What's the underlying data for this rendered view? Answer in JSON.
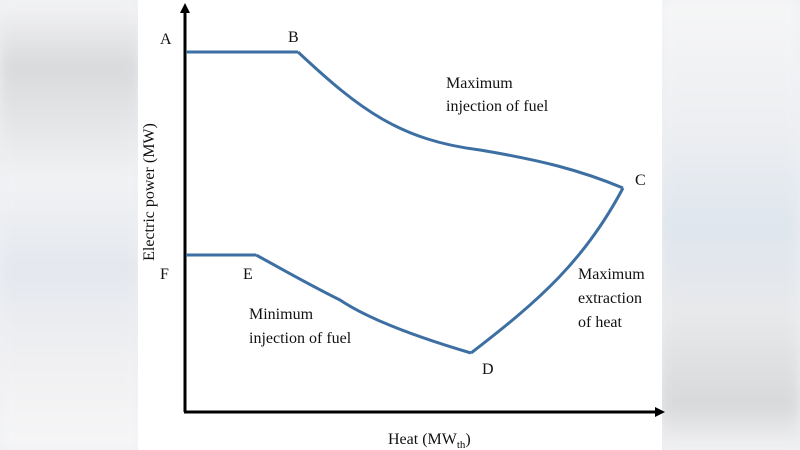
{
  "diagram": {
    "y_axis_label": "Electric power (MW)",
    "x_axis_label": "Heat (MW",
    "x_axis_label_sub": "th",
    "x_axis_label_close": ")",
    "points": {
      "A": "A",
      "B": "B",
      "C": "C",
      "D": "D",
      "E": "E",
      "F": "F"
    },
    "annotations": {
      "max_fuel": [
        "Maximum",
        "injection of fuel"
      ],
      "max_heat": [
        "Maximum",
        "extraction",
        "of heat"
      ],
      "min_fuel": [
        "Minimum",
        "injection of fuel"
      ]
    },
    "line_color": "#3d6fa3",
    "axis_color": "#000000"
  }
}
